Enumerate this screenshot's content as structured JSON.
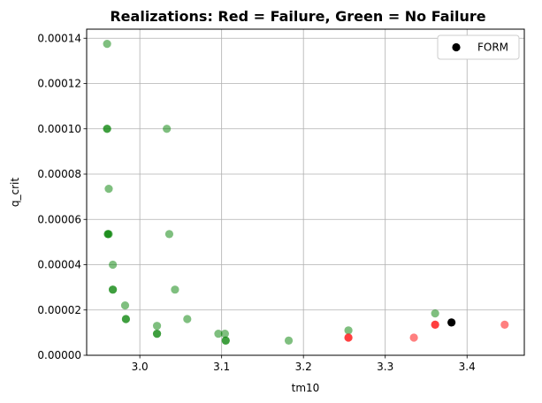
{
  "chart_data": {
    "type": "scatter",
    "title": "Realizations: Red = Failure, Green = No Failure",
    "xlabel": "tm10",
    "ylabel": "q_crit",
    "xlim": [
      2.935,
      3.47
    ],
    "ylim": [
      0,
      0.000144
    ],
    "x_ticks": [
      3.0,
      3.1,
      3.2,
      3.3,
      3.4
    ],
    "x_tick_labels": [
      "3.0",
      "3.1",
      "3.2",
      "3.3",
      "3.4"
    ],
    "y_ticks": [
      0,
      2e-05,
      4e-05,
      6e-05,
      8e-05,
      0.0001,
      0.00012,
      0.00014
    ],
    "y_tick_labels": [
      "0.00000",
      "0.00002",
      "0.00004",
      "0.00006",
      "0.00008",
      "0.00010",
      "0.00012",
      "0.00014"
    ],
    "grid": true,
    "legend": {
      "position": "top-right",
      "entries": [
        "FORM"
      ]
    },
    "colors": {
      "failure": "#ff0000",
      "no_failure": "#008000",
      "form": "#000000"
    },
    "series": [
      {
        "status": "no_failure",
        "x": [
          2.96,
          2.96,
          2.96,
          2.962,
          2.962,
          2.961,
          2.961,
          2.967,
          2.967,
          2.967,
          2.982,
          2.983,
          2.983,
          3.021,
          3.021,
          3.021,
          3.033,
          3.036,
          3.043,
          3.058,
          3.096,
          3.104,
          3.105,
          3.105,
          3.182,
          3.255,
          3.361
        ],
        "y": [
          0.0001375,
          0.0001,
          0.0001,
          7.35e-05,
          5.35e-05,
          5.35e-05,
          5.35e-05,
          4e-05,
          2.9e-05,
          2.9e-05,
          2.2e-05,
          1.6e-05,
          1.6e-05,
          1.3e-05,
          9.5e-06,
          9.5e-06,
          0.0001,
          5.35e-05,
          2.9e-05,
          1.6e-05,
          9.5e-06,
          9.5e-06,
          6.5e-06,
          6.5e-06,
          6.5e-06,
          1.1e-05,
          1.85e-05
        ]
      },
      {
        "status": "failure",
        "x": [
          3.255,
          3.255,
          3.335,
          3.361,
          3.361,
          3.446
        ],
        "y": [
          7.8e-06,
          7.8e-06,
          7.8e-06,
          1.35e-05,
          1.35e-05,
          1.35e-05
        ]
      },
      {
        "name": "FORM",
        "status": "form",
        "x": [
          3.381
        ],
        "y": [
          1.45e-05
        ]
      }
    ]
  }
}
